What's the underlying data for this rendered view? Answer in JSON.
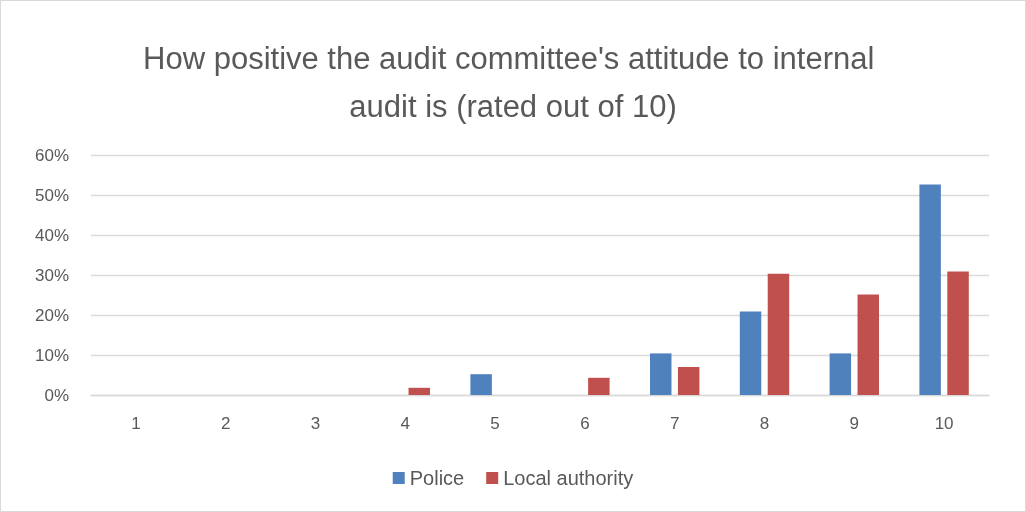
{
  "chart_data": {
    "type": "bar",
    "title": "How positive the audit committee's attitude to internal audit is (rated out of 10)",
    "categories": [
      "1",
      "2",
      "3",
      "4",
      "5",
      "6",
      "7",
      "8",
      "9",
      "10"
    ],
    "series": [
      {
        "name": "Police",
        "color": "#4f81bd",
        "values": [
          0,
          0,
          0,
          0,
          5.2,
          0,
          10.4,
          20.9,
          10.4,
          52.6
        ]
      },
      {
        "name": "Local authority",
        "color": "#c0504d",
        "values": [
          0,
          0,
          0,
          1.8,
          0,
          4.3,
          7.0,
          30.3,
          25.1,
          30.9
        ]
      }
    ],
    "ylim": [
      0,
      60
    ],
    "yticks": [
      {
        "value": 0,
        "label": "0%"
      },
      {
        "value": 10,
        "label": "10%"
      },
      {
        "value": 20,
        "label": "20%"
      },
      {
        "value": 30,
        "label": "30%"
      },
      {
        "value": 40,
        "label": "40%"
      },
      {
        "value": 50,
        "label": "50%"
      },
      {
        "value": 60,
        "label": "60%"
      }
    ],
    "grid": "y",
    "legend": "bottom"
  }
}
